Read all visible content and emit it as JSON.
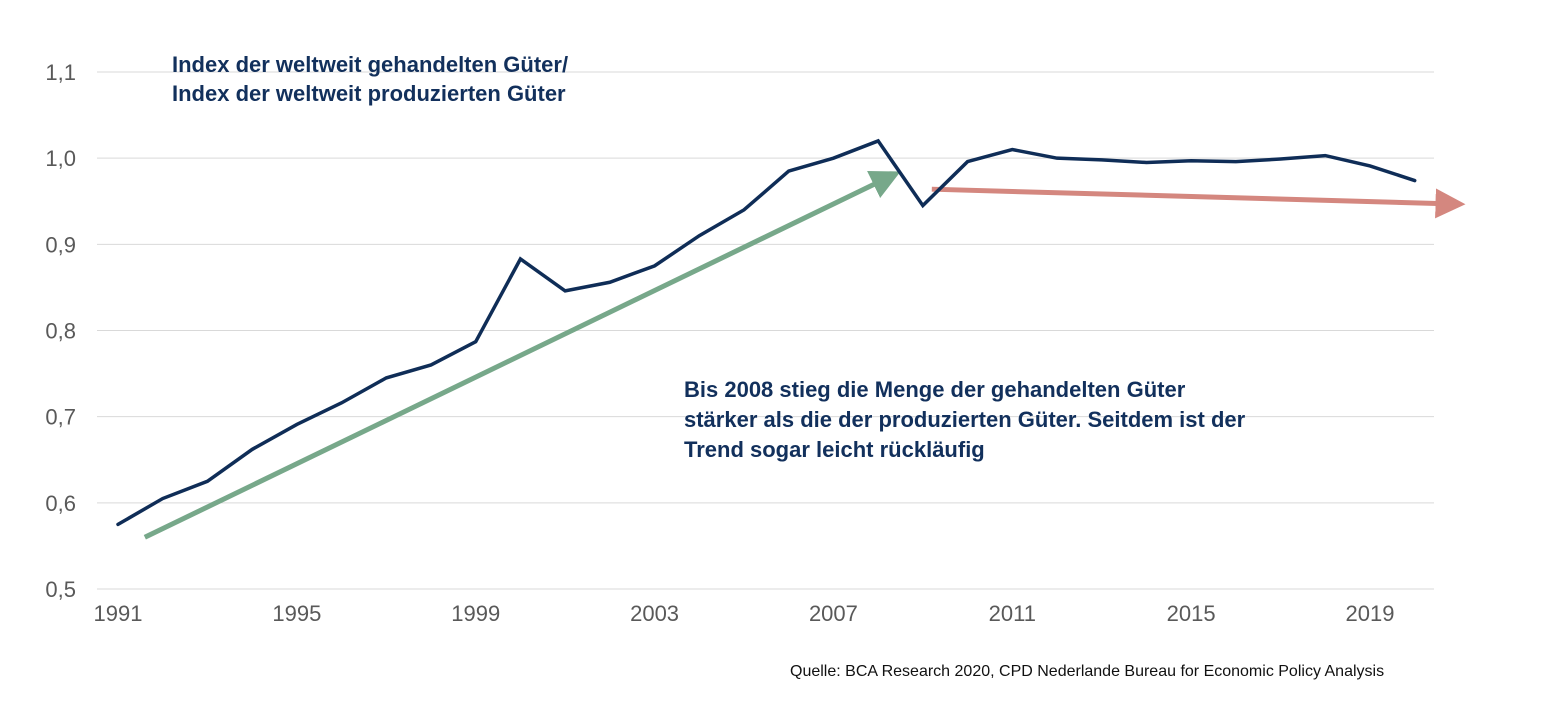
{
  "chart_data": {
    "type": "line",
    "title": "Index der weltweit gehandelten Güter/ Index der weltweit produzierten Güter",
    "title_lines": [
      "Index der weltweit gehandelten Güter/",
      "Index der weltweit produzierten Güter"
    ],
    "xlabel": "",
    "ylabel": "",
    "ylim": [
      0.5,
      1.1
    ],
    "xlim": [
      1991,
      2020
    ],
    "y_ticks": [
      0.5,
      0.6,
      0.7,
      0.8,
      0.9,
      1.0,
      1.1
    ],
    "y_tick_labels": [
      "0,5",
      "0,6",
      "0,7",
      "0,8",
      "0,9",
      "1,0",
      "1,1"
    ],
    "x_ticks": [
      1991,
      1995,
      1999,
      2003,
      2007,
      2011,
      2015,
      2019
    ],
    "x_tick_labels": [
      "1991",
      "1995",
      "1999",
      "2003",
      "2007",
      "2011",
      "2015",
      "2019"
    ],
    "grid": "horizontal",
    "legend": "none",
    "series": [
      {
        "name": "Index gehandelte / produzierte Güter",
        "color": "#0f2d57",
        "x": [
          1991,
          1992,
          1993,
          1994,
          1995,
          1996,
          1997,
          1998,
          1999,
          2000,
          2001,
          2002,
          2003,
          2004,
          2005,
          2006,
          2007,
          2008,
          2009,
          2010,
          2011,
          2012,
          2013,
          2014,
          2015,
          2016,
          2017,
          2018,
          2019,
          2020
        ],
        "values": [
          0.575,
          0.605,
          0.625,
          0.662,
          0.691,
          0.716,
          0.745,
          0.76,
          0.787,
          0.883,
          0.846,
          0.856,
          0.875,
          0.91,
          0.94,
          0.985,
          1.0,
          1.02,
          0.945,
          0.996,
          1.01,
          1.0,
          0.998,
          0.995,
          0.997,
          0.996,
          0.999,
          1.003,
          0.991,
          0.974
        ]
      }
    ],
    "trend_arrows": [
      {
        "name": "rising-trend",
        "color": "#77a88a",
        "from": [
          1991.6,
          0.56
        ],
        "to": [
          2008.2,
          0.977
        ]
      },
      {
        "name": "declining-trend",
        "color": "#d4877f",
        "from": [
          2009.2,
          0.964
        ],
        "to": [
          2020.8,
          0.947
        ]
      }
    ],
    "annotations": [
      "Bis 2008 stieg die Menge der gehandelten Güter stärker als die der produzierten Güter. Seitdem ist der Trend sogar leicht rückläufig"
    ],
    "annotation_lines": [
      "Bis 2008 stieg die Menge der gehandelten Güter",
      "stärker als die der produzierten Güter. Seitdem ist der",
      "Trend sogar leicht rückläufig"
    ],
    "source": "Quelle: BCA Research 2020, CPD Nederlande Bureau for Economic Policy Analysis"
  },
  "colors": {
    "text": "#12305c",
    "grid": "#d9d9d9",
    "tick": "#595959"
  }
}
